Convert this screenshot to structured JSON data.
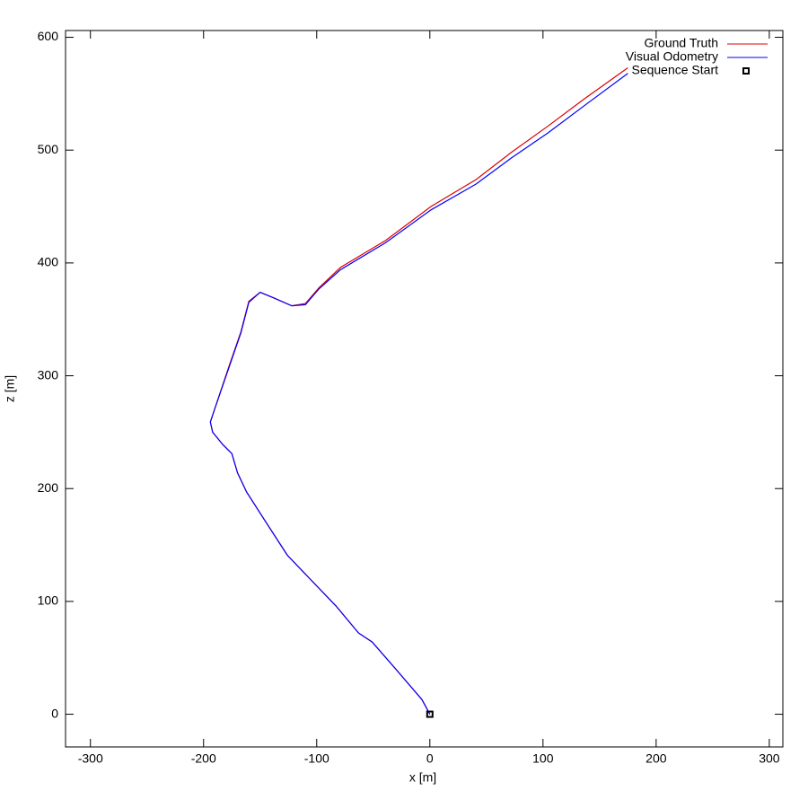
{
  "chart_data": {
    "type": "line",
    "xlabel": "x [m]",
    "ylabel": "z [m]",
    "xlim": [
      -322,
      312
    ],
    "ylim": [
      -29,
      606
    ],
    "xticks": [
      -300,
      -200,
      -100,
      0,
      100,
      200,
      300
    ],
    "yticks": [
      0,
      100,
      200,
      300,
      400,
      500,
      600
    ],
    "legend": "upper right",
    "series": [
      {
        "name": "Ground Truth",
        "color": "#dd0000",
        "x": [
          0,
          -7,
          -31,
          -51,
          -63,
          -83,
          -106,
          -126,
          -146,
          -162,
          -170,
          -175,
          -183,
          -192,
          -194,
          -190,
          -178,
          -167,
          -160,
          -150,
          -138,
          -122,
          -110,
          -98,
          -79,
          -39,
          1,
          41,
          72,
          104,
          136,
          175
        ],
        "values": [
          0,
          13,
          41,
          64,
          72,
          96,
          120,
          141,
          172,
          197,
          214,
          231,
          239,
          250,
          259,
          271,
          307,
          339,
          366,
          374,
          369,
          362,
          364,
          378,
          396,
          420,
          450,
          474,
          498,
          521,
          545,
          573
        ]
      },
      {
        "name": "Visual Odometry",
        "color": "#0000ff",
        "x": [
          0,
          -7,
          -31,
          -51,
          -63,
          -83,
          -106,
          -126,
          -146,
          -162,
          -170,
          -175,
          -183,
          -192,
          -194,
          -190,
          -178,
          -167,
          -160,
          -150,
          -138,
          -122,
          -110,
          -98,
          -79,
          -39,
          1,
          41,
          72,
          104,
          136,
          175
        ],
        "values": [
          0,
          13,
          41,
          64,
          72,
          96,
          120,
          141,
          172,
          197,
          214,
          231,
          239,
          250,
          259,
          271,
          306,
          338,
          365,
          374,
          369,
          362,
          363,
          377,
          394,
          418,
          447,
          470,
          493,
          515,
          539,
          568
        ]
      },
      {
        "name": "Sequence Start",
        "color": "#000000",
        "marker": "square",
        "x": [
          0
        ],
        "values": [
          0
        ]
      }
    ]
  }
}
